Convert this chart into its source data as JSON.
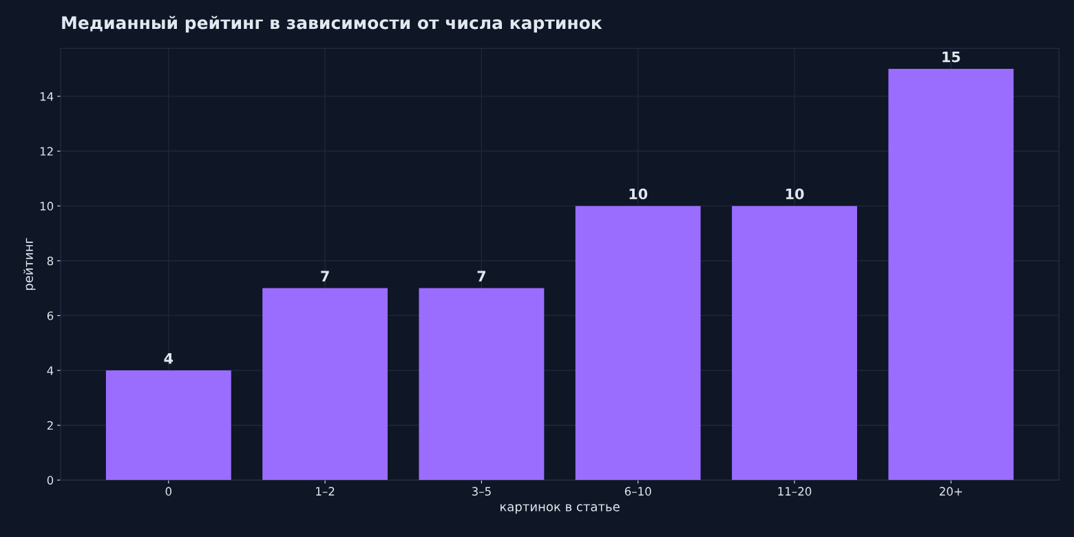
{
  "chart_data": {
    "type": "bar",
    "title": "Медианный рейтинг в зависимости от числа картинок",
    "xlabel": "картинок в статье",
    "ylabel": "рейтинг",
    "categories": [
      "0",
      "1–2",
      "3–5",
      "6–10",
      "11–20",
      "20+"
    ],
    "values": [
      4,
      7,
      7,
      10,
      10,
      15
    ],
    "color": "#9b6dff",
    "ylim": [
      0,
      15.75
    ],
    "yticks": [
      0,
      2,
      4,
      6,
      8,
      10,
      12,
      14
    ],
    "grid": true,
    "data_labels": true
  }
}
